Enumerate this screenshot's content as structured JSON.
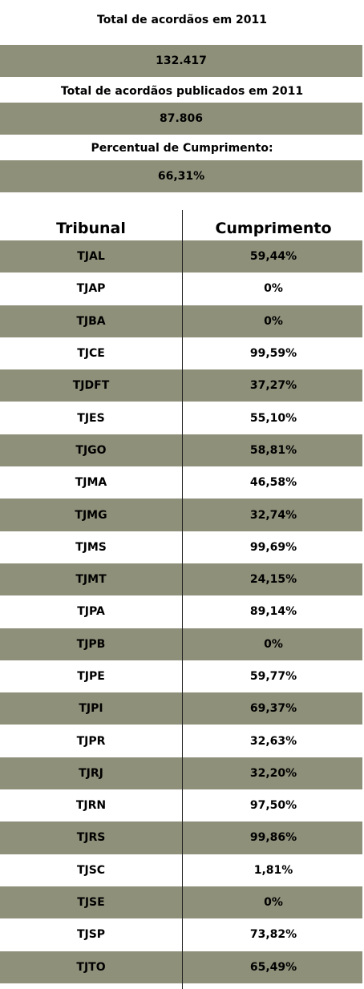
{
  "summary": {
    "total_label": "Total de acordãos em 2011",
    "total_value": "132.417",
    "published_label": "Total de acordãos publicados em 2011",
    "published_value": "87.806",
    "percent_label": "Percentual de Cumprimento:",
    "percent_value": "66,31%"
  },
  "table": {
    "headers": [
      "Tribunal",
      "Cumprimento"
    ],
    "rows": [
      [
        "TJAL",
        "59,44%"
      ],
      [
        "TJAP",
        "0%"
      ],
      [
        "TJBA",
        "0%"
      ],
      [
        "TJCE",
        "99,59%"
      ],
      [
        "TJDFT",
        "37,27%"
      ],
      [
        "TJES",
        "55,10%"
      ],
      [
        "TJGO",
        "58,81%"
      ],
      [
        "TJMA",
        "46,58%"
      ],
      [
        "TJMG",
        "32,74%"
      ],
      [
        "TJMS",
        "99,69%"
      ],
      [
        "TJMT",
        "24,15%"
      ],
      [
        "TJPA",
        "89,14%"
      ],
      [
        "TJPB",
        "0%"
      ],
      [
        "TJPE",
        "59,77%"
      ],
      [
        "TJPI",
        "69,37%"
      ],
      [
        "TJPR",
        "32,63%"
      ],
      [
        "TJRJ",
        "32,20%"
      ],
      [
        "TJRN",
        "97,50%"
      ],
      [
        "TJRS",
        "99,86%"
      ],
      [
        "TJSC",
        "1,81%"
      ],
      [
        "TJSE",
        "0%"
      ],
      [
        "TJSP",
        "73,82%"
      ],
      [
        "TJTO",
        "65,49%"
      ]
    ]
  },
  "colors": {
    "shaded_row": "#8f907a"
  }
}
